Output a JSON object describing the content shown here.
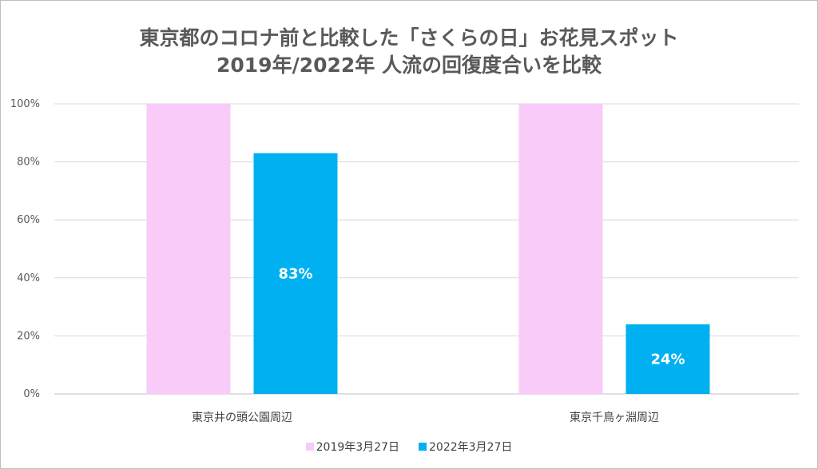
{
  "chart_data": {
    "type": "bar",
    "title": "東京都のコロナ前と比較した「さくらの日」お花見スポット",
    "subtitle": "2019年/2022年 人流の回復度合いを比較",
    "categories": [
      "東京井の頭公園周辺",
      "東京千鳥ヶ淵周辺"
    ],
    "series": [
      {
        "name": "2019年3月27日",
        "values": [
          100,
          100
        ],
        "color": "#F9CBF9",
        "data_labels": [
          "",
          ""
        ]
      },
      {
        "name": "2022年3月27日",
        "values": [
          83,
          24
        ],
        "color": "#00B0F0",
        "data_labels": [
          "83%",
          "24%"
        ]
      }
    ],
    "y_ticks": [
      "0%",
      "20%",
      "40%",
      "60%",
      "80%",
      "100%"
    ],
    "ylim": [
      0,
      100
    ],
    "grid": true,
    "legend_position": "bottom",
    "xlabel": "",
    "ylabel": ""
  }
}
